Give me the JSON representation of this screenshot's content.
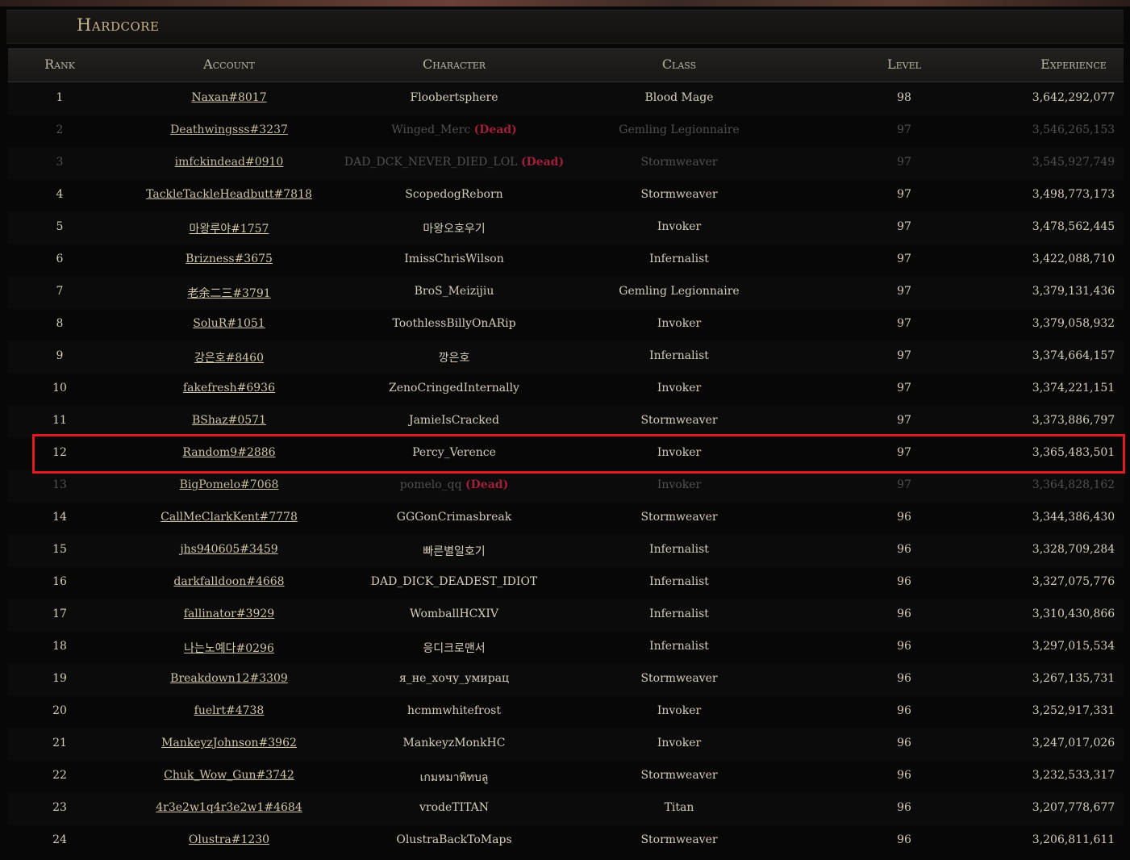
{
  "title": "Hardcore",
  "columns": [
    "Rank",
    "Account",
    "Character",
    "Class",
    "Level",
    "Experience"
  ],
  "dead_label": "(Dead)",
  "highlighted_rank": "12",
  "colors": {
    "gold": "#c7b488",
    "dead": "#a0203a",
    "highlight": "#e01a22"
  },
  "rows": [
    {
      "rank": "1",
      "account": "Naxan#8017",
      "character": "Floobertsphere",
      "class": "Blood Mage",
      "level": "98",
      "experience": "3,642,292,077",
      "dead": false
    },
    {
      "rank": "2",
      "account": "Deathwingsss#3237",
      "character": "Winged_Merc",
      "class": "Gemling Legionnaire",
      "level": "97",
      "experience": "3,546,265,153",
      "dead": true
    },
    {
      "rank": "3",
      "account": "imfckindead#0910",
      "character": "DAD_DCK_NEVER_DIED_LOL",
      "class": "Stormweaver",
      "level": "97",
      "experience": "3,545,927,749",
      "dead": true
    },
    {
      "rank": "4",
      "account": "TackleTackleHeadbutt#7818",
      "character": "ScopedogReborn",
      "class": "Stormweaver",
      "level": "97",
      "experience": "3,498,773,173",
      "dead": false
    },
    {
      "rank": "5",
      "account": "마왕루야#1757",
      "character": "마왕오호우기",
      "class": "Invoker",
      "level": "97",
      "experience": "3,478,562,445",
      "dead": false
    },
    {
      "rank": "6",
      "account": "Brizness#3675",
      "character": "ImissChrisWilson",
      "class": "Infernalist",
      "level": "97",
      "experience": "3,422,088,710",
      "dead": false
    },
    {
      "rank": "7",
      "account": "老余二三#3791",
      "character": "BroS_Meizijiu",
      "class": "Gemling Legionnaire",
      "level": "97",
      "experience": "3,379,131,436",
      "dead": false
    },
    {
      "rank": "8",
      "account": "SoluR#1051",
      "character": "ToothlessBillyOnARip",
      "class": "Invoker",
      "level": "97",
      "experience": "3,379,058,932",
      "dead": false
    },
    {
      "rank": "9",
      "account": "강은호#8460",
      "character": "깡은호",
      "class": "Infernalist",
      "level": "97",
      "experience": "3,374,664,157",
      "dead": false
    },
    {
      "rank": "10",
      "account": "fakefresh#6936",
      "character": "ZenoCringedInternally",
      "class": "Invoker",
      "level": "97",
      "experience": "3,374,221,151",
      "dead": false
    },
    {
      "rank": "11",
      "account": "BShaz#0571",
      "character": "JamieIsCracked",
      "class": "Stormweaver",
      "level": "97",
      "experience": "3,373,886,797",
      "dead": false
    },
    {
      "rank": "12",
      "account": "Random9#2886",
      "character": "Percy_Verence",
      "class": "Invoker",
      "level": "97",
      "experience": "3,365,483,501",
      "dead": false
    },
    {
      "rank": "13",
      "account": "BigPomelo#7068",
      "character": "pomelo_qq",
      "class": "Invoker",
      "level": "97",
      "experience": "3,364,828,162",
      "dead": true
    },
    {
      "rank": "14",
      "account": "CallMeClarkKent#7778",
      "character": "GGGonCrimasbreak",
      "class": "Stormweaver",
      "level": "96",
      "experience": "3,344,386,430",
      "dead": false
    },
    {
      "rank": "15",
      "account": "jhs940605#3459",
      "character": "빠른별일호기",
      "class": "Infernalist",
      "level": "96",
      "experience": "3,328,709,284",
      "dead": false
    },
    {
      "rank": "16",
      "account": "darkfalldoon#4668",
      "character": "DAD_DICK_DEADEST_IDIOT",
      "class": "Infernalist",
      "level": "96",
      "experience": "3,327,075,776",
      "dead": false
    },
    {
      "rank": "17",
      "account": "fallinator#3929",
      "character": "WomballHCXIV",
      "class": "Infernalist",
      "level": "96",
      "experience": "3,310,430,866",
      "dead": false
    },
    {
      "rank": "18",
      "account": "나는노예다#0296",
      "character": "응디크로맨서",
      "class": "Infernalist",
      "level": "96",
      "experience": "3,297,015,534",
      "dead": false
    },
    {
      "rank": "19",
      "account": "Breakdown12#3309",
      "character": "я_не_хочу_умирац",
      "class": "Stormweaver",
      "level": "96",
      "experience": "3,267,135,731",
      "dead": false
    },
    {
      "rank": "20",
      "account": "fuelrt#4738",
      "character": "hcmmwhitefrost",
      "class": "Invoker",
      "level": "96",
      "experience": "3,252,917,331",
      "dead": false
    },
    {
      "rank": "21",
      "account": "MankeyzJohnson#3962",
      "character": "MankeyzMonkHC",
      "class": "Invoker",
      "level": "96",
      "experience": "3,247,017,026",
      "dead": false
    },
    {
      "rank": "22",
      "account": "Chuk_Wow_Gun#3742",
      "character": "เกมหมาพิทบลู",
      "class": "Stormweaver",
      "level": "96",
      "experience": "3,232,533,317",
      "dead": false
    },
    {
      "rank": "23",
      "account": "4r3e2w1q4r3e2w1#4684",
      "character": "vrodeTITAN",
      "class": "Titan",
      "level": "96",
      "experience": "3,207,778,677",
      "dead": false
    },
    {
      "rank": "24",
      "account": "Olustra#1230",
      "character": "OlustraBackToMaps",
      "class": "Stormweaver",
      "level": "96",
      "experience": "3,206,811,611",
      "dead": false
    }
  ]
}
